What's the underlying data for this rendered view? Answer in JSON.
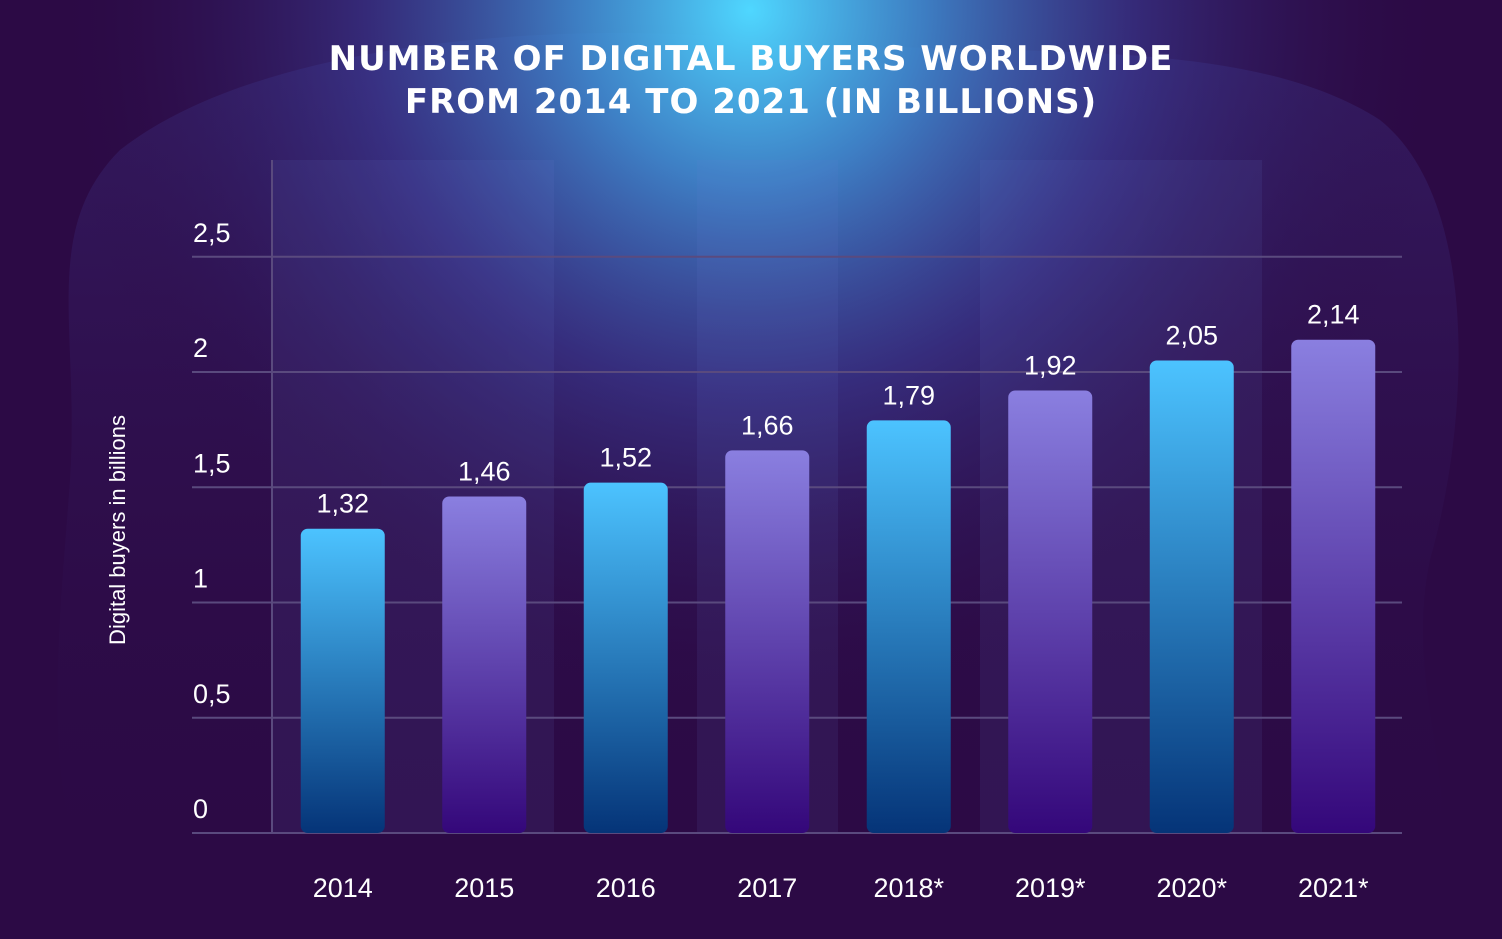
{
  "title_lines": [
    "NUMBER OF DIGITAL BUYERS WORLDWIDE",
    "FROM 2014 TO 2021 (IN BILLIONS)"
  ],
  "colors": {
    "background": "#2c0a45",
    "bar_blue_top": "#4cc3ff",
    "bar_blue_bottom": "#053478",
    "bar_purple_top": "#8a7fe0",
    "bar_purple_bottom": "#34077a",
    "gridline": "#5a4a7e",
    "text": "#ffffff"
  },
  "chart_data": {
    "type": "bar",
    "title": "NUMBER OF DIGITAL BUYERS WORLDWIDE FROM 2014 TO 2021 (IN BILLIONS)",
    "xlabel": "",
    "ylabel": "Digital buyers in billions",
    "ylim": [
      0,
      2.85
    ],
    "y_ticks": [
      0,
      0.5,
      1,
      1.5,
      2,
      2.5
    ],
    "y_tick_labels": [
      "0",
      "0,5",
      "1",
      "1,5",
      "2",
      "2,5"
    ],
    "grid": true,
    "categories": [
      "2014",
      "2015",
      "2016",
      "2017",
      "2018*",
      "2019*",
      "2020*",
      "2021*"
    ],
    "values": [
      1.32,
      1.46,
      1.52,
      1.66,
      1.79,
      1.92,
      2.05,
      2.14
    ],
    "value_labels": [
      "1,32",
      "1,46",
      "1,52",
      "1,66",
      "1,79",
      "1,92",
      "2,05",
      "2,14"
    ],
    "bar_colors": [
      "blue",
      "purple",
      "blue",
      "purple",
      "blue",
      "purple",
      "blue",
      "purple"
    ]
  }
}
